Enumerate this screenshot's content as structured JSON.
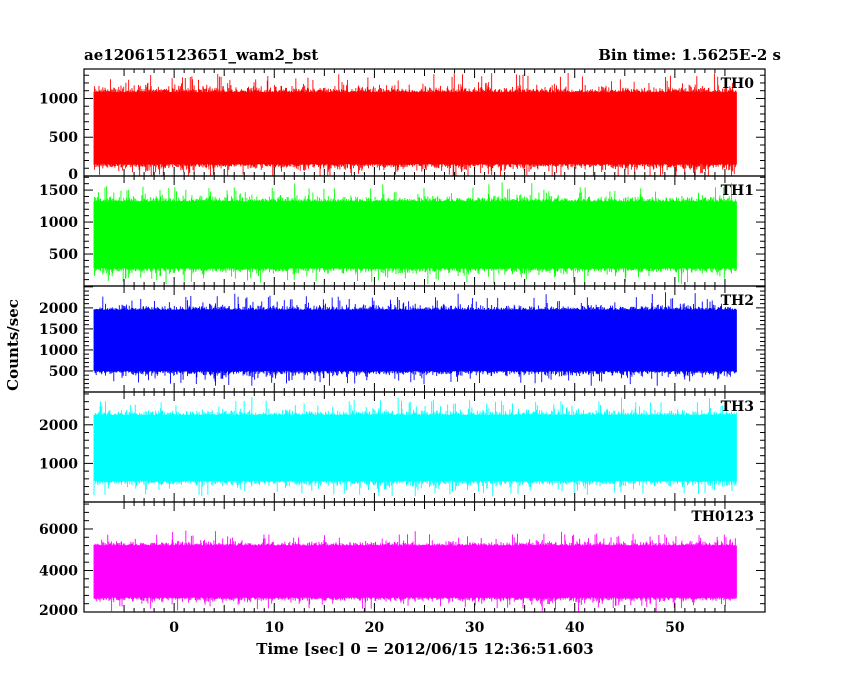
{
  "chart_data": {
    "type": "line",
    "title_left": "ae120615123651_wam2_bst",
    "title_right": "Bin time: 1.5625E-2 s",
    "xlabel": "Time [sec] 0 = 2012/06/15 12:36:51.603",
    "ylabel": "Counts/sec",
    "xlim": [
      -9,
      59
    ],
    "x_ticks": [
      0,
      10,
      20,
      30,
      40,
      50
    ],
    "x_range": [
      -8,
      56.2
    ],
    "bin_time": 0.015625,
    "panels": [
      {
        "name": "TH0",
        "color": "#ff0000",
        "ylim": [
          0,
          1380
        ],
        "y_ticks": [
          0,
          500,
          1000
        ],
        "band": [
          155,
          1080
        ],
        "extremes": [
          0,
          1330
        ]
      },
      {
        "name": "TH1",
        "color": "#00ff00",
        "ylim": [
          0,
          1720
        ],
        "y_ticks": [
          500,
          1000,
          1500
        ],
        "band": [
          280,
          1320
        ],
        "extremes": [
          30,
          1720
        ]
      },
      {
        "name": "TH2",
        "color": "#0000ff",
        "ylim": [
          0,
          2520
        ],
        "y_ticks": [
          500,
          1000,
          1500,
          2000
        ],
        "band": [
          500,
          1950
        ],
        "extremes": [
          150,
          2520
        ]
      },
      {
        "name": "TH3",
        "color": "#00ffff",
        "ylim": [
          0,
          2850
        ],
        "y_ticks": [
          1000,
          2000
        ],
        "band": [
          550,
          2250
        ],
        "extremes": [
          150,
          2850
        ]
      },
      {
        "name": "TH0123",
        "color": "#ff00ff",
        "ylim": [
          2000,
          7300
        ],
        "y_ticks": [
          2000,
          4000,
          6000
        ],
        "band": [
          2700,
          5200
        ],
        "extremes": [
          2000,
          7300
        ]
      }
    ]
  }
}
